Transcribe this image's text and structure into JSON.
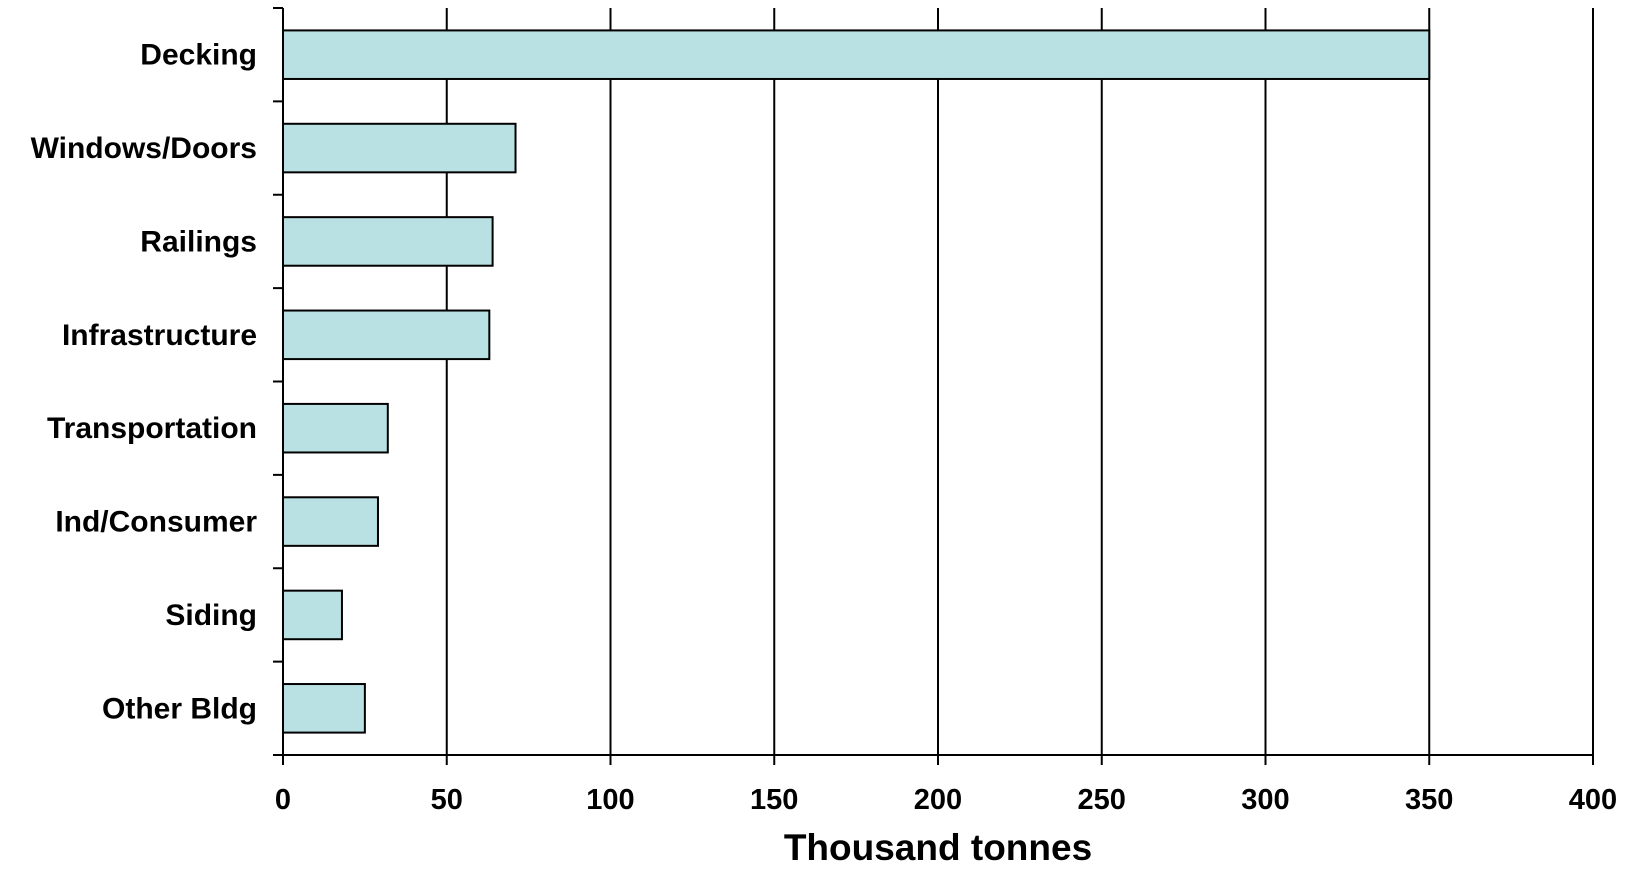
{
  "chart_data": {
    "type": "bar",
    "orientation": "horizontal",
    "categories": [
      "Decking",
      "Windows/Doors",
      "Railings",
      "Infrastructure",
      "Transportation",
      "Ind/Consumer",
      "Siding",
      "Other Bldg"
    ],
    "values": [
      350,
      71,
      64,
      63,
      32,
      29,
      18,
      25
    ],
    "title": "",
    "xlabel": "Thousand tonnes",
    "ylabel": "",
    "xlim": [
      0,
      400
    ],
    "xticks": [
      0,
      50,
      100,
      150,
      200,
      250,
      300,
      350,
      400
    ],
    "xtick_labels": [
      "0",
      "50",
      "100",
      "150",
      "200",
      "250",
      "300",
      "350",
      "400"
    ],
    "grid": "vertical",
    "legend": "none",
    "colors": {
      "bar_fill": "#b9e0e2",
      "bar_stroke": "#000000",
      "gridline": "#000000",
      "text": "#000000"
    }
  }
}
